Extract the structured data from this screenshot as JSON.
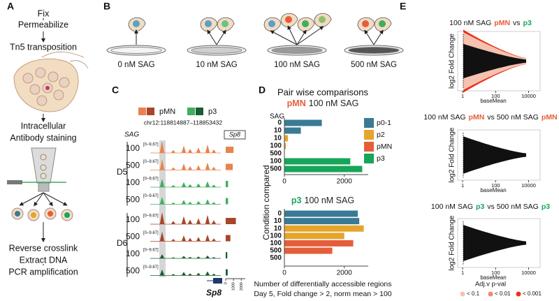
{
  "panel_labels": [
    "A",
    "B",
    "C",
    "D",
    "E"
  ],
  "protocol": {
    "steps": [
      "Fix",
      "Permeabilize",
      "Tn5 transposition",
      "Intracellular",
      "Antibody staining",
      "Reverse crosslink",
      "Extract DNA",
      "PCR amplification"
    ]
  },
  "treatments": [
    "0 nM SAG",
    "10 nM SAG",
    "100 nM SAG",
    "500 nM SAG"
  ],
  "tracks": {
    "legend": [
      {
        "name": "pMN",
        "colors": [
          "#e8834f",
          "#a8452a"
        ]
      },
      {
        "name": "p3",
        "colors": [
          "#3fae5f",
          "#195e30"
        ]
      }
    ],
    "region": "chr12:118814887–118853432",
    "sag_label": "SAG",
    "gene": "Sp8",
    "days": [
      "D5",
      "D6"
    ],
    "rows": [
      {
        "sag": "100",
        "range": "[0–9.67]",
        "color": "#e8834f"
      },
      {
        "sag": "500",
        "range": "[0–9.67]",
        "color": "#e8834f"
      },
      {
        "sag": "100",
        "range": "[0–9.67]",
        "color": "#3fae5f"
      },
      {
        "sag": "500",
        "range": "[0–9.67]",
        "color": "#3fae5f"
      },
      {
        "sag": "100",
        "range": "[0–9.67]",
        "color": "#a8452a"
      },
      {
        "sag": "500",
        "range": "[0–9.67]",
        "color": "#a8452a"
      },
      {
        "sag": "100",
        "range": "[0–9.67]",
        "color": "#195e30"
      },
      {
        "sag": "500",
        "range": "[0–9.67]",
        "color": "#195e30"
      }
    ]
  },
  "significance_legend": {
    "title": "Adj.v p-val",
    "items": [
      {
        "name": "< 0.1",
        "color": "#f6c2b0"
      },
      {
        "name": "< 0.01",
        "color": "#f08a6a"
      },
      {
        "name": "< 0.001",
        "color": "#e8321c"
      }
    ]
  },
  "chart_data": [
    {
      "type": "bar",
      "orientation": "horizontal",
      "title": "Sp8",
      "values": [
        1000,
        900,
        300,
        300,
        1300,
        600,
        200,
        250
      ],
      "colors": [
        "#e8834f",
        "#e8834f",
        "#3fae5f",
        "#3fae5f",
        "#a8452a",
        "#a8452a",
        "#195e30",
        "#195e30"
      ],
      "xlim": [
        0,
        2500
      ],
      "xticks": [
        0,
        1000,
        2000
      ]
    },
    {
      "type": "bar",
      "orientation": "horizontal",
      "suptitle": "Pair wise comparisons",
      "title_parts": [
        {
          "text": "pMN",
          "color": "#e55e3a"
        },
        {
          "text": "100 nM SAG",
          "color": "#222222"
        }
      ],
      "category_label": "SAG",
      "ylabel": "Condition compared",
      "categories": [
        "0",
        "10",
        "10",
        "100",
        "500",
        "100",
        "500"
      ],
      "colors": [
        "#3a7a95",
        "#3a7a95",
        "#e5a52b",
        "#e5a52b",
        "#e55e3a",
        "#17a55a",
        "#17a55a"
      ],
      "values": [
        1250,
        550,
        120,
        50,
        null,
        2200,
        2600
      ],
      "xlim": [
        0,
        2800
      ],
      "xticks": [
        0,
        2000
      ],
      "legend": [
        {
          "name": "p0-1",
          "color": "#3a7a95"
        },
        {
          "name": "p2",
          "color": "#e5a52b"
        },
        {
          "name": "pMN",
          "color": "#e55e3a"
        },
        {
          "name": "p3",
          "color": "#17a55a"
        }
      ]
    },
    {
      "type": "bar",
      "orientation": "horizontal",
      "title_parts": [
        {
          "text": "p3",
          "color": "#17a55a"
        },
        {
          "text": "100 nM SAG",
          "color": "#222222"
        }
      ],
      "categories": [
        "0",
        "10",
        "10",
        "100",
        "100",
        "500",
        "500"
      ],
      "colors": [
        "#3a7a95",
        "#3a7a95",
        "#e5a52b",
        "#e5a52b",
        "#e55e3a",
        "#e55e3a",
        "#17a55a"
      ],
      "values": [
        2450,
        2500,
        2650,
        2000,
        2300,
        1600,
        null
      ],
      "xlim": [
        0,
        2800
      ],
      "xticks": [
        0,
        2000
      ],
      "xlabel": "Number of differentially accessible regions",
      "note": "Day 5, Fold change > 2, norm mean > 100"
    },
    {
      "type": "scatter",
      "title_parts": [
        {
          "text": "100 nM SAG",
          "color": "#111111"
        },
        {
          "text": "pMN",
          "color": "#e55e3a"
        },
        {
          "text": "vs",
          "color": "#111111"
        },
        {
          "text": "p3",
          "color": "#17a55a"
        }
      ],
      "xlabel": "baseMean",
      "ylabel": "log2 Fold Change",
      "xscale": "log",
      "xlim": [
        0.5,
        50000
      ],
      "xticks": [
        1,
        100,
        10000
      ],
      "highlight": true
    },
    {
      "type": "scatter",
      "title_parts": [
        {
          "text": "100 nM SAG",
          "color": "#111111"
        },
        {
          "text": "pMN",
          "color": "#e55e3a"
        },
        {
          "text": "vs 500 nM SAG",
          "color": "#111111"
        },
        {
          "text": "pMN",
          "color": "#e55e3a"
        }
      ],
      "xlabel": "baseMean",
      "ylabel": "log2 Fold Change",
      "xscale": "log",
      "xlim": [
        0.5,
        50000
      ],
      "xticks": [
        1,
        100,
        10000
      ],
      "highlight": false
    },
    {
      "type": "scatter",
      "title_parts": [
        {
          "text": "100 nM SAG",
          "color": "#111111"
        },
        {
          "text": "p3",
          "color": "#17a55a"
        },
        {
          "text": "vs 500 nM SAG",
          "color": "#111111"
        },
        {
          "text": "p3",
          "color": "#17a55a"
        }
      ],
      "xlabel": "baseMean",
      "ylabel": "log2 Fold Change",
      "xscale": "log",
      "xlim": [
        0.5,
        50000
      ],
      "xticks": [
        1,
        100,
        10000
      ],
      "highlight": false
    }
  ]
}
